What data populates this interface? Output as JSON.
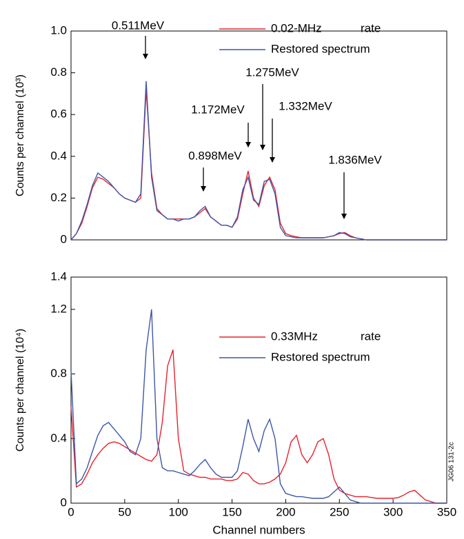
{
  "chart_data": [
    {
      "type": "line",
      "ylabel": "Counts per channel (10³)",
      "x": [
        0,
        5,
        10,
        15,
        20,
        25,
        30,
        35,
        40,
        45,
        50,
        55,
        60,
        65,
        70,
        75,
        80,
        85,
        90,
        95,
        100,
        105,
        110,
        115,
        120,
        125,
        130,
        135,
        140,
        145,
        150,
        155,
        160,
        165,
        170,
        175,
        180,
        185,
        190,
        195,
        200,
        205,
        210,
        215,
        220,
        225,
        230,
        235,
        240,
        245,
        250,
        255,
        260,
        265,
        270,
        275,
        280,
        285,
        290,
        295,
        300,
        305,
        310,
        315,
        320,
        325,
        330,
        335,
        340,
        345,
        350
      ],
      "xlim": [
        0,
        350
      ],
      "ylim": [
        0,
        1
      ],
      "yticks": [
        0,
        0.2,
        0.4,
        0.6,
        0.8,
        {
          "value": 1,
          "label": "1.0"
        }
      ],
      "series": [
        {
          "name": "0.02-MHz",
          "color": "#e8202a",
          "values": [
            0,
            0.03,
            0.08,
            0.16,
            0.25,
            0.3,
            0.29,
            0.27,
            0.25,
            0.22,
            0.2,
            0.19,
            0.18,
            0.2,
            0.72,
            0.32,
            0.15,
            0.12,
            0.1,
            0.1,
            0.1,
            0.1,
            0.1,
            0.11,
            0.13,
            0.15,
            0.11,
            0.09,
            0.07,
            0.07,
            0.06,
            0.1,
            0.22,
            0.33,
            0.2,
            0.16,
            0.26,
            0.3,
            0.24,
            0.08,
            0.03,
            0.02,
            0.015,
            0.01,
            0.01,
            0.01,
            0.01,
            0.01,
            0.015,
            0.02,
            0.03,
            0.035,
            0.02,
            0.01,
            0.005,
            0,
            0,
            0,
            0,
            0,
            0,
            0,
            0,
            0,
            0,
            0,
            0,
            0,
            0,
            0,
            0
          ]
        },
        {
          "name": "Restored spectrum",
          "color": "#3d55a6",
          "values": [
            0,
            0.03,
            0.09,
            0.17,
            0.26,
            0.32,
            0.3,
            0.28,
            0.25,
            0.22,
            0.2,
            0.19,
            0.18,
            0.22,
            0.76,
            0.3,
            0.14,
            0.12,
            0.1,
            0.1,
            0.09,
            0.1,
            0.1,
            0.11,
            0.14,
            0.16,
            0.11,
            0.09,
            0.07,
            0.07,
            0.06,
            0.11,
            0.24,
            0.3,
            0.19,
            0.17,
            0.28,
            0.29,
            0.22,
            0.06,
            0.02,
            0.015,
            0.01,
            0.01,
            0.01,
            0.01,
            0.01,
            0.01,
            0.015,
            0.02,
            0.035,
            0.03,
            0.015,
            0.01,
            0.005,
            0,
            0,
            0,
            0,
            0,
            0,
            0,
            0,
            0,
            0,
            0,
            0,
            0,
            0,
            0,
            0
          ]
        }
      ],
      "legend_extra": "rate",
      "annotations": [
        "0.511MeV",
        "0.898MeV",
        "1.172MeV",
        "1.275MeV",
        "1.332MeV",
        "1.836MeV"
      ]
    },
    {
      "type": "line",
      "ylabel": "Counts per channel (10⁴)",
      "xlabel": "Channel numbers",
      "x": [
        0,
        5,
        10,
        15,
        20,
        25,
        30,
        35,
        40,
        45,
        50,
        55,
        60,
        65,
        70,
        75,
        80,
        85,
        90,
        95,
        100,
        105,
        110,
        115,
        120,
        125,
        130,
        135,
        140,
        145,
        150,
        155,
        160,
        165,
        170,
        175,
        180,
        185,
        190,
        195,
        200,
        205,
        210,
        215,
        220,
        225,
        230,
        235,
        240,
        245,
        250,
        255,
        260,
        265,
        270,
        275,
        280,
        285,
        290,
        295,
        300,
        305,
        310,
        315,
        320,
        325,
        330,
        335,
        340,
        345,
        350
      ],
      "xlim": [
        0,
        350
      ],
      "xticks": [
        0,
        50,
        100,
        150,
        200,
        250,
        300,
        350
      ],
      "ylim": [
        0,
        1.4
      ],
      "yticks": [
        0,
        0.4,
        0.8,
        1.2,
        1.4
      ],
      "series": [
        {
          "name": "0.33MHz",
          "color": "#e8202a",
          "values": [
            0.6,
            0.1,
            0.12,
            0.18,
            0.25,
            0.3,
            0.34,
            0.37,
            0.38,
            0.37,
            0.35,
            0.33,
            0.31,
            0.29,
            0.27,
            0.26,
            0.3,
            0.5,
            0.85,
            0.95,
            0.4,
            0.2,
            0.18,
            0.17,
            0.16,
            0.16,
            0.15,
            0.15,
            0.15,
            0.14,
            0.14,
            0.15,
            0.19,
            0.18,
            0.14,
            0.12,
            0.12,
            0.13,
            0.15,
            0.18,
            0.25,
            0.38,
            0.42,
            0.3,
            0.25,
            0.3,
            0.38,
            0.4,
            0.3,
            0.15,
            0.08,
            0.06,
            0.05,
            0.04,
            0.04,
            0.04,
            0.035,
            0.03,
            0.03,
            0.03,
            0.03,
            0.035,
            0.05,
            0.07,
            0.08,
            0.05,
            0.02,
            0.01,
            0,
            0,
            0
          ]
        },
        {
          "name": "Restored spectrum",
          "color": "#3d55a6",
          "values": [
            0.82,
            0.12,
            0.15,
            0.22,
            0.32,
            0.42,
            0.48,
            0.5,
            0.46,
            0.42,
            0.38,
            0.32,
            0.3,
            0.4,
            0.95,
            1.2,
            0.4,
            0.22,
            0.2,
            0.2,
            0.19,
            0.18,
            0.17,
            0.2,
            0.24,
            0.27,
            0.22,
            0.18,
            0.16,
            0.16,
            0.16,
            0.2,
            0.35,
            0.52,
            0.4,
            0.32,
            0.45,
            0.52,
            0.4,
            0.12,
            0.06,
            0.05,
            0.04,
            0.04,
            0.035,
            0.03,
            0.03,
            0.03,
            0.04,
            0.07,
            0.1,
            0.06,
            0.02,
            0.01,
            0,
            0,
            0,
            0,
            0,
            0,
            0,
            0,
            0,
            0,
            0,
            0,
            0,
            0,
            0,
            0,
            0
          ]
        }
      ],
      "legend_extra": "rate",
      "side_label": "JG06 131-2c"
    }
  ]
}
